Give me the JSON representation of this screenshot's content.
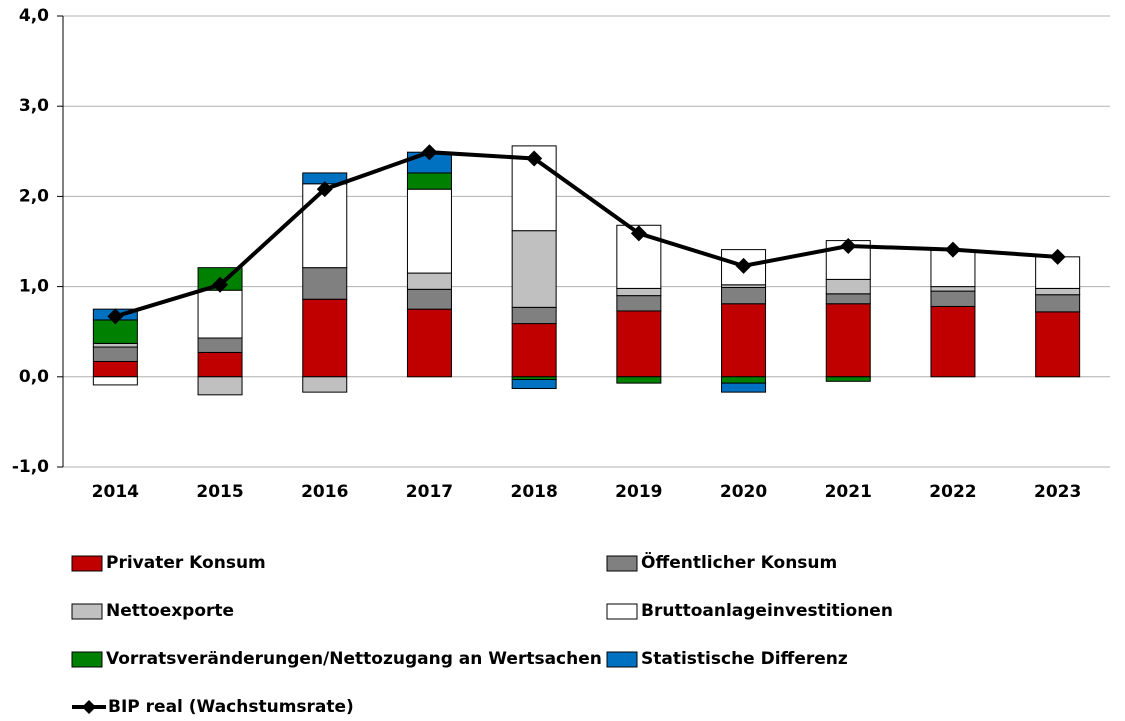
{
  "chart_data": {
    "type": "bar",
    "categories": [
      "2014",
      "2015",
      "2016",
      "2017",
      "2018",
      "2019",
      "2020",
      "2021",
      "2022",
      "2023"
    ],
    "ylim": [
      -1,
      4
    ],
    "yticks": [
      {
        "value": -1,
        "label": "-1,0"
      },
      {
        "value": 0,
        "label": "0,0"
      },
      {
        "value": 1,
        "label": "1,0"
      },
      {
        "value": 2,
        "label": "2,0"
      },
      {
        "value": 3,
        "label": "3,0"
      },
      {
        "value": 4,
        "label": "4,0"
      }
    ],
    "grid": true,
    "series": [
      {
        "name": "Privater Konsum",
        "color": "#c00000",
        "values": [
          0.17,
          0.27,
          0.86,
          0.75,
          0.59,
          0.73,
          0.81,
          0.81,
          0.78,
          0.72
        ]
      },
      {
        "name": "Öffentlicher Konsum",
        "color": "#808080",
        "values": [
          0.16,
          0.16,
          0.35,
          0.22,
          0.18,
          0.17,
          0.18,
          0.11,
          0.17,
          0.19
        ]
      },
      {
        "name": "Nettoexporte",
        "color": "#c0c0c0",
        "values": [
          0.04,
          -0.2,
          -0.17,
          0.18,
          0.85,
          0.08,
          0.03,
          0.16,
          0.05,
          0.07
        ]
      },
      {
        "name": "Bruttoanlageinvestitionen",
        "color": "#ffffff",
        "values": [
          -0.09,
          0.53,
          0.93,
          0.93,
          0.94,
          0.7,
          0.39,
          0.43,
          0.4,
          0.35
        ]
      },
      {
        "name": "Vorratsveränderungen/Nettozugang an Wertsachen",
        "color": "#008000",
        "values": [
          0.26,
          0.25,
          0,
          0.18,
          -0.03,
          -0.07,
          -0.07,
          -0.05,
          0,
          0
        ]
      },
      {
        "name": "Statistische Differenz",
        "color": "#0070c0",
        "values": [
          0.12,
          0,
          0.12,
          0.23,
          -0.1,
          0,
          -0.1,
          0,
          0,
          0
        ]
      },
      {
        "name": "BIP real (Wachstumsrate)",
        "type": "line",
        "color": "#000000",
        "values": [
          0.67,
          1.02,
          2.08,
          2.49,
          2.42,
          1.59,
          1.23,
          1.45,
          1.41,
          1.33
        ]
      }
    ]
  }
}
